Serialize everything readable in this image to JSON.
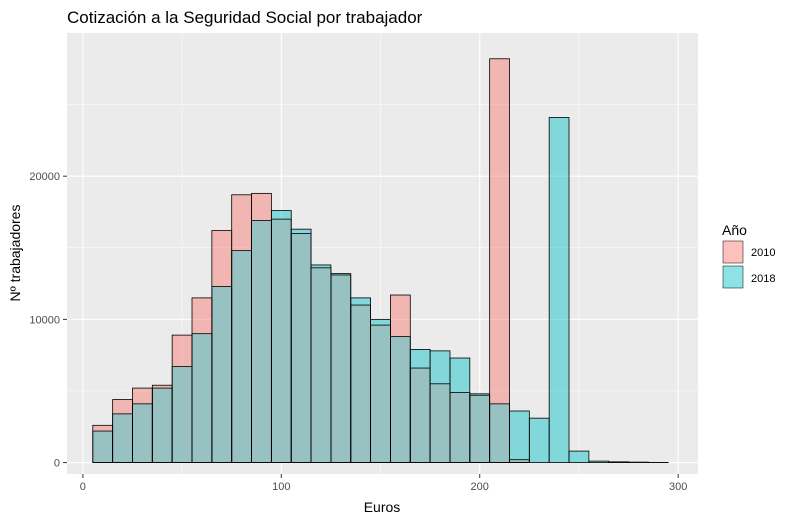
{
  "chart_data": {
    "type": "bar",
    "subtype": "overlapping-histogram",
    "title": "Cotización a la Seguridad Social por trabajador",
    "xlabel": "Euros",
    "ylabel": "Nº trabajadores",
    "xlim": [
      -8,
      310
    ],
    "ylim": [
      -800,
      30000
    ],
    "x_ticks": [
      0,
      100,
      200,
      300
    ],
    "y_ticks": [
      0,
      10000,
      20000
    ],
    "y_tick_labels": [
      "0",
      "10000",
      "20000"
    ],
    "bin_width": 10,
    "bin_starts": [
      5,
      15,
      25,
      35,
      45,
      55,
      65,
      75,
      85,
      95,
      105,
      115,
      125,
      135,
      145,
      155,
      165,
      175,
      185,
      195,
      205,
      215,
      225,
      235,
      245,
      255,
      265,
      275,
      285
    ],
    "legend": {
      "title": "Año",
      "position": "right"
    },
    "grid": true,
    "colors": {
      "panel_background": "#ebebeb",
      "grid_major": "#ffffff",
      "bar_outline": "#000000",
      "overlap": "#98c1c1"
    },
    "series": [
      {
        "name": "2010",
        "color": "#f8766d",
        "values": [
          2600,
          4400,
          5200,
          5400,
          8900,
          11500,
          16200,
          18700,
          18800,
          17000,
          16000,
          13600,
          13100,
          11000,
          9600,
          11700,
          6600,
          5500,
          4900,
          4700,
          28200,
          200,
          0,
          0,
          0,
          0,
          0,
          0,
          0
        ]
      },
      {
        "name": "2018",
        "color": "#00bfc4",
        "values": [
          2200,
          3400,
          4100,
          5200,
          6700,
          9000,
          12300,
          14800,
          16900,
          17600,
          16300,
          13800,
          13200,
          11500,
          10000,
          8800,
          7900,
          7800,
          7300,
          4800,
          4100,
          3600,
          3100,
          24100,
          800,
          100,
          50,
          30,
          10
        ]
      }
    ]
  }
}
